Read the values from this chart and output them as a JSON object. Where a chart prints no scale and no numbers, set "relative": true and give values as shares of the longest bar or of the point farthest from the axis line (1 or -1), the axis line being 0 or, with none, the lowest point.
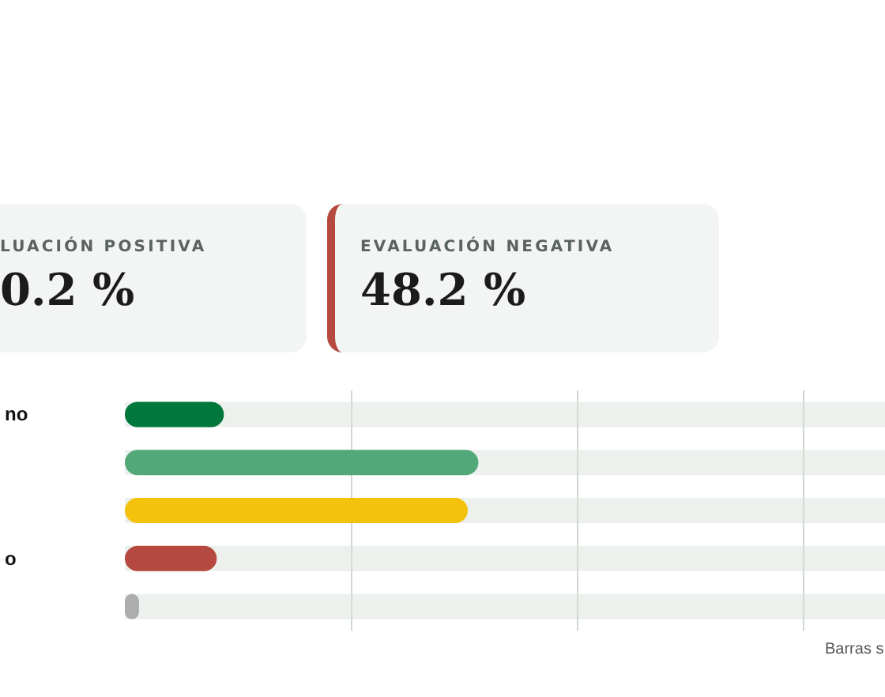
{
  "chart_data": [
    {
      "type": "other",
      "annotations": [
        "LUACIÓN POSITIVA",
        "0.2 %",
        "EVALUACIÓN NEGATIVA",
        "48.2 %"
      ]
    },
    {
      "type": "bar",
      "orientation": "horizontal",
      "relative": true,
      "categories": [
        "no",
        null,
        null,
        "o",
        null
      ],
      "values": [
        0.28,
        1,
        0.97,
        0.26,
        0.04
      ],
      "colors": [
        "#00783c",
        "#52a878",
        "#f4c20d",
        "#b5483f",
        "#adadad"
      ],
      "ref_lines": [
        {
          "axis": "x",
          "value": 0.64,
          "color": "#d2d6d2"
        },
        {
          "axis": "x",
          "value": 1.28,
          "color": "#d2d6d2"
        },
        {
          "axis": "x",
          "value": 1.92,
          "color": "#d2d6d2"
        }
      ],
      "annotations": [
        "Barras s"
      ]
    }
  ]
}
